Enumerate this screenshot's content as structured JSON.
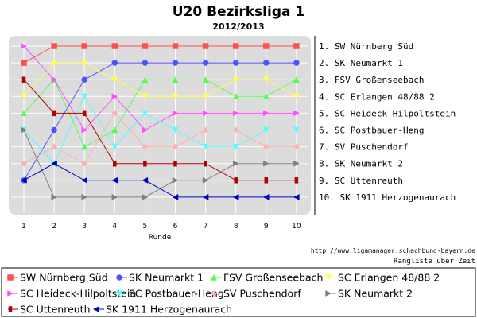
{
  "chart_data": {
    "type": "line",
    "title": "U20 Bezirksliga 1",
    "subtitle": "2012/2013",
    "xlabel": "Runde",
    "ylabel": "",
    "x": [
      1,
      2,
      3,
      4,
      5,
      6,
      7,
      8,
      9,
      10
    ],
    "ylim": [
      1,
      10
    ],
    "y_inverted": true,
    "grid": true,
    "rank_labels": [
      "1.  SW Nürnberg Süd",
      "2.  SK Neumarkt 1",
      "3.  FSV Großenseebach",
      "4.  SC Erlangen 48/88 2",
      "5.  SC Heideck-Hilpoltstein",
      "6.  SC Postbauer-Heng",
      "7.  SV Puschendorf",
      "8.  SK Neumarkt 2",
      "9.  SC Uttenreuth",
      "10.  SK 1911 Herzogenaurach"
    ],
    "source_url": "http://www.ligamanager.schachbund-bayern.de",
    "footer_caption": "Rangliste über Zeit",
    "legend_position": "bottom",
    "series": [
      {
        "name": "SW Nürnberg Süd",
        "color": "#ff5050",
        "marker": "square",
        "values": [
          2,
          1,
          1,
          1,
          1,
          1,
          1,
          1,
          1,
          1
        ]
      },
      {
        "name": "SK Neumarkt 1",
        "color": "#5050ff",
        "marker": "circle",
        "values": [
          9,
          6,
          3,
          2,
          2,
          2,
          2,
          2,
          2,
          2
        ]
      },
      {
        "name": "FSV Großenseebach",
        "color": "#50ff50",
        "marker": "triangle-up",
        "values": [
          5,
          3,
          7,
          6,
          3,
          3,
          3,
          4,
          4,
          3
        ]
      },
      {
        "name": "SC Erlangen 48/88 2",
        "color": "#ffff50",
        "marker": "triangle-down",
        "values": [
          4,
          2,
          2,
          3,
          4,
          4,
          4,
          3,
          3,
          4
        ]
      },
      {
        "name": "SC Heideck-Hilpoltstein",
        "color": "#ff50ff",
        "marker": "triangle-right",
        "values": [
          1,
          3,
          6,
          4,
          6,
          5,
          5,
          5,
          5,
          5
        ]
      },
      {
        "name": "SC Postbauer-Heng",
        "color": "#50ffff",
        "marker": "triangle-down",
        "values": [
          6,
          8,
          4,
          7,
          5,
          6,
          7,
          7,
          6,
          6
        ]
      },
      {
        "name": "SV Puschendorf",
        "color": "#ffb0b0",
        "marker": "diamond",
        "values": [
          8,
          7,
          8,
          5,
          7,
          7,
          6,
          6,
          7,
          7
        ]
      },
      {
        "name": "SK Neumarkt 2",
        "color": "#808080",
        "marker": "triangle-right",
        "values": [
          6,
          10,
          10,
          10,
          10,
          9,
          9,
          8,
          8,
          8
        ]
      },
      {
        "name": "SC Uttenreuth",
        "color": "#b00000",
        "marker": "rect-vertical",
        "values": [
          3,
          5,
          5,
          8,
          8,
          8,
          8,
          9,
          9,
          9
        ]
      },
      {
        "name": "SK 1911 Herzogenaurach",
        "color": "#0000c0",
        "marker": "triangle-left",
        "values": [
          9,
          8,
          9,
          9,
          9,
          10,
          10,
          10,
          10,
          10
        ]
      }
    ]
  }
}
